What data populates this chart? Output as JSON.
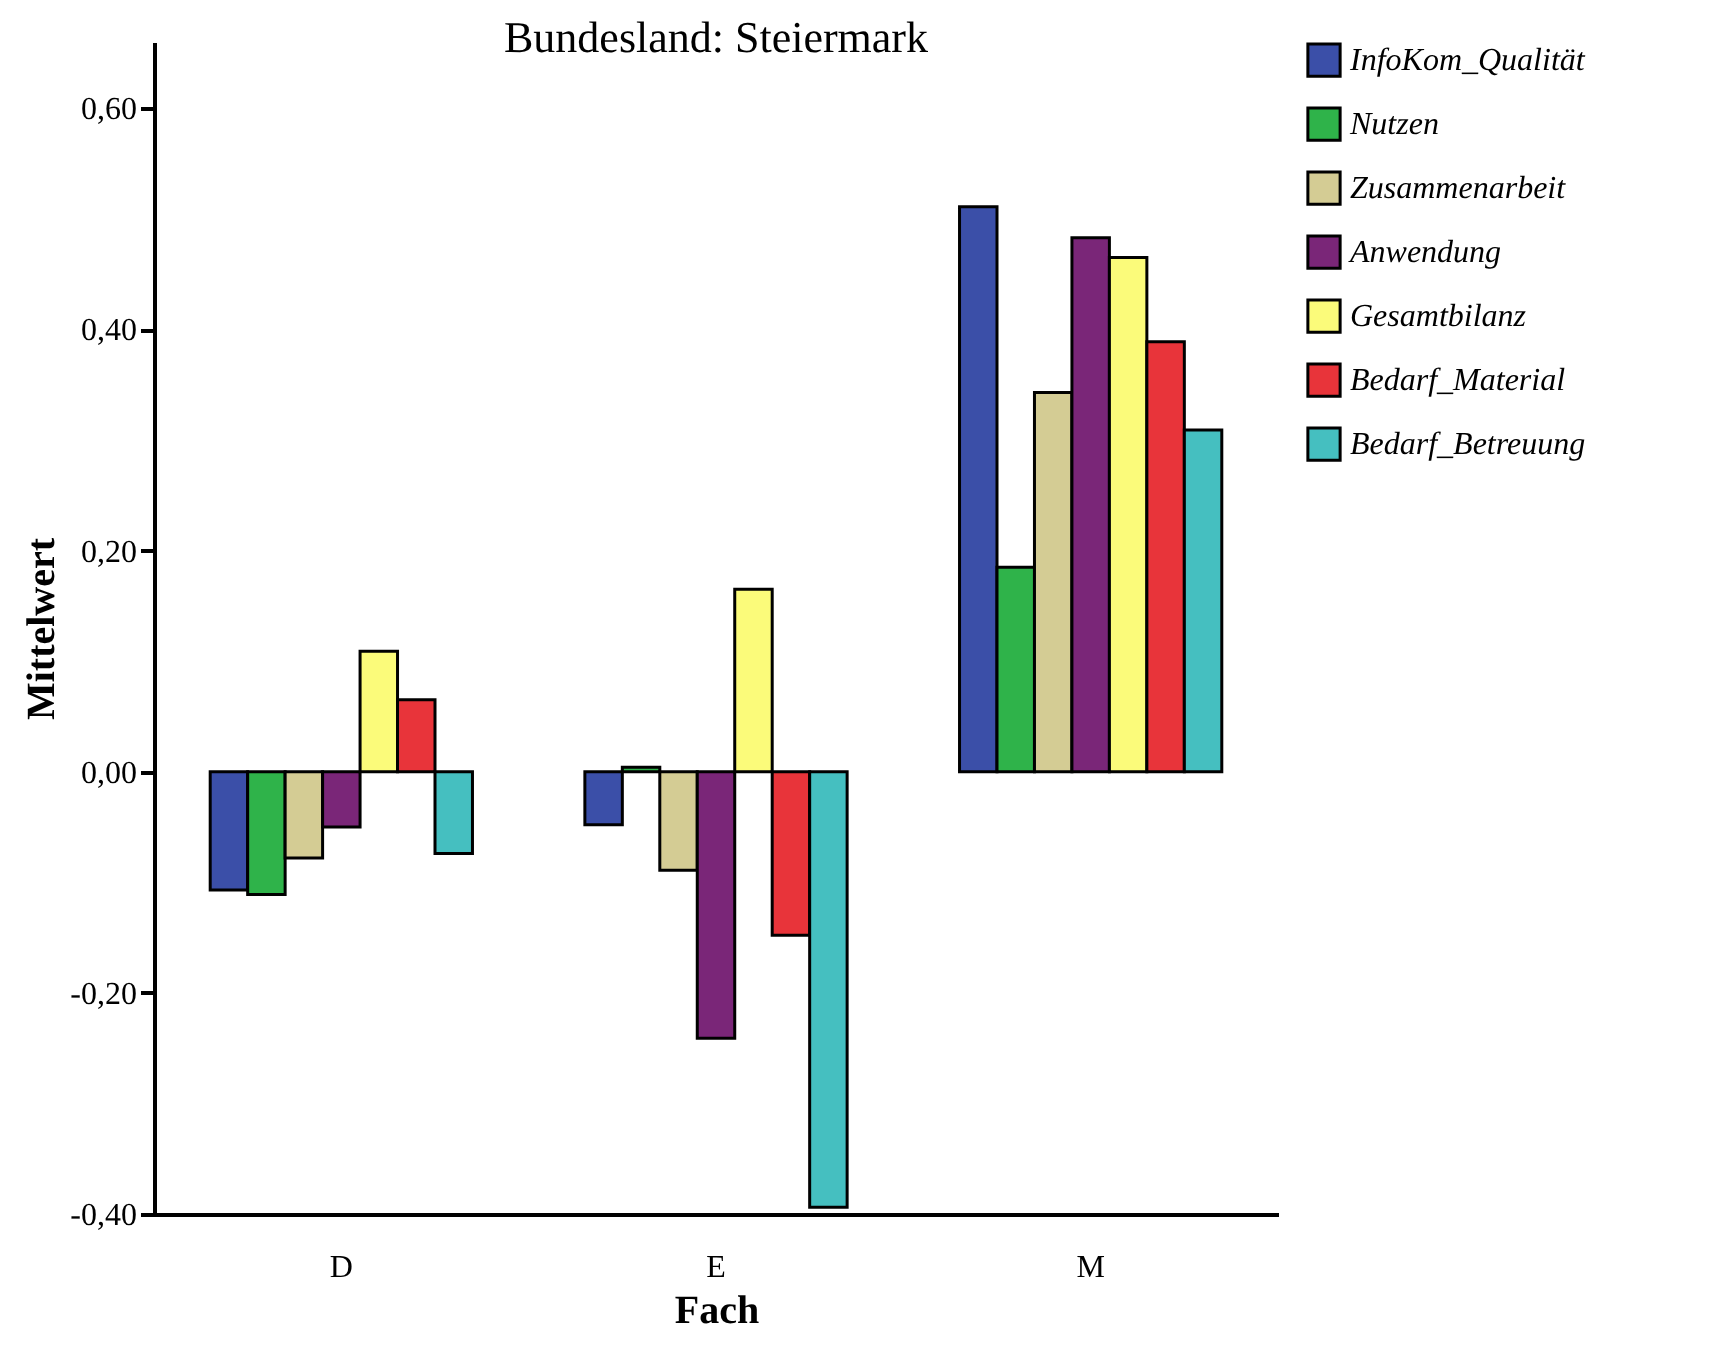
{
  "chart_data": {
    "type": "bar",
    "title": "Bundesland: Steiermark",
    "xlabel": "Fach",
    "ylabel": "Mittelwert",
    "categories": [
      "D",
      "E",
      "M"
    ],
    "series": [
      {
        "name": "InfoKom_Qualität",
        "color": "#3b4fa8",
        "values": [
          -0.107,
          -0.048,
          0.511
        ]
      },
      {
        "name": "Nutzen",
        "color": "#2fb34a",
        "values": [
          -0.111,
          0.004,
          0.185
        ]
      },
      {
        "name": "Zusammenarbeit",
        "color": "#d4cc94",
        "values": [
          -0.078,
          -0.089,
          0.343
        ]
      },
      {
        "name": "Anwendung",
        "color": "#7a2678",
        "values": [
          -0.05,
          -0.241,
          0.483
        ]
      },
      {
        "name": "Gesamtbilanz",
        "color": "#fbfb7a",
        "values": [
          0.109,
          0.165,
          0.465
        ]
      },
      {
        "name": "Bedarf_Material",
        "color": "#e8343a",
        "values": [
          0.065,
          -0.148,
          0.389
        ]
      },
      {
        "name": "Bedarf_Betreuung",
        "color": "#45bfc0",
        "values": [
          -0.074,
          -0.394,
          0.309
        ]
      }
    ],
    "ylim": [
      -0.4,
      0.66
    ],
    "yticks": [
      {
        "value": -0.4,
        "label": "-0,40"
      },
      {
        "value": -0.2,
        "label": "-0,20"
      },
      {
        "value": 0,
        "label": "0,00"
      },
      {
        "value": 0.2,
        "label": "0,20"
      },
      {
        "value": 0.4,
        "label": "0,40"
      },
      {
        "value": 0.6,
        "label": "0,60"
      }
    ],
    "grid": false,
    "legend": "top right"
  }
}
